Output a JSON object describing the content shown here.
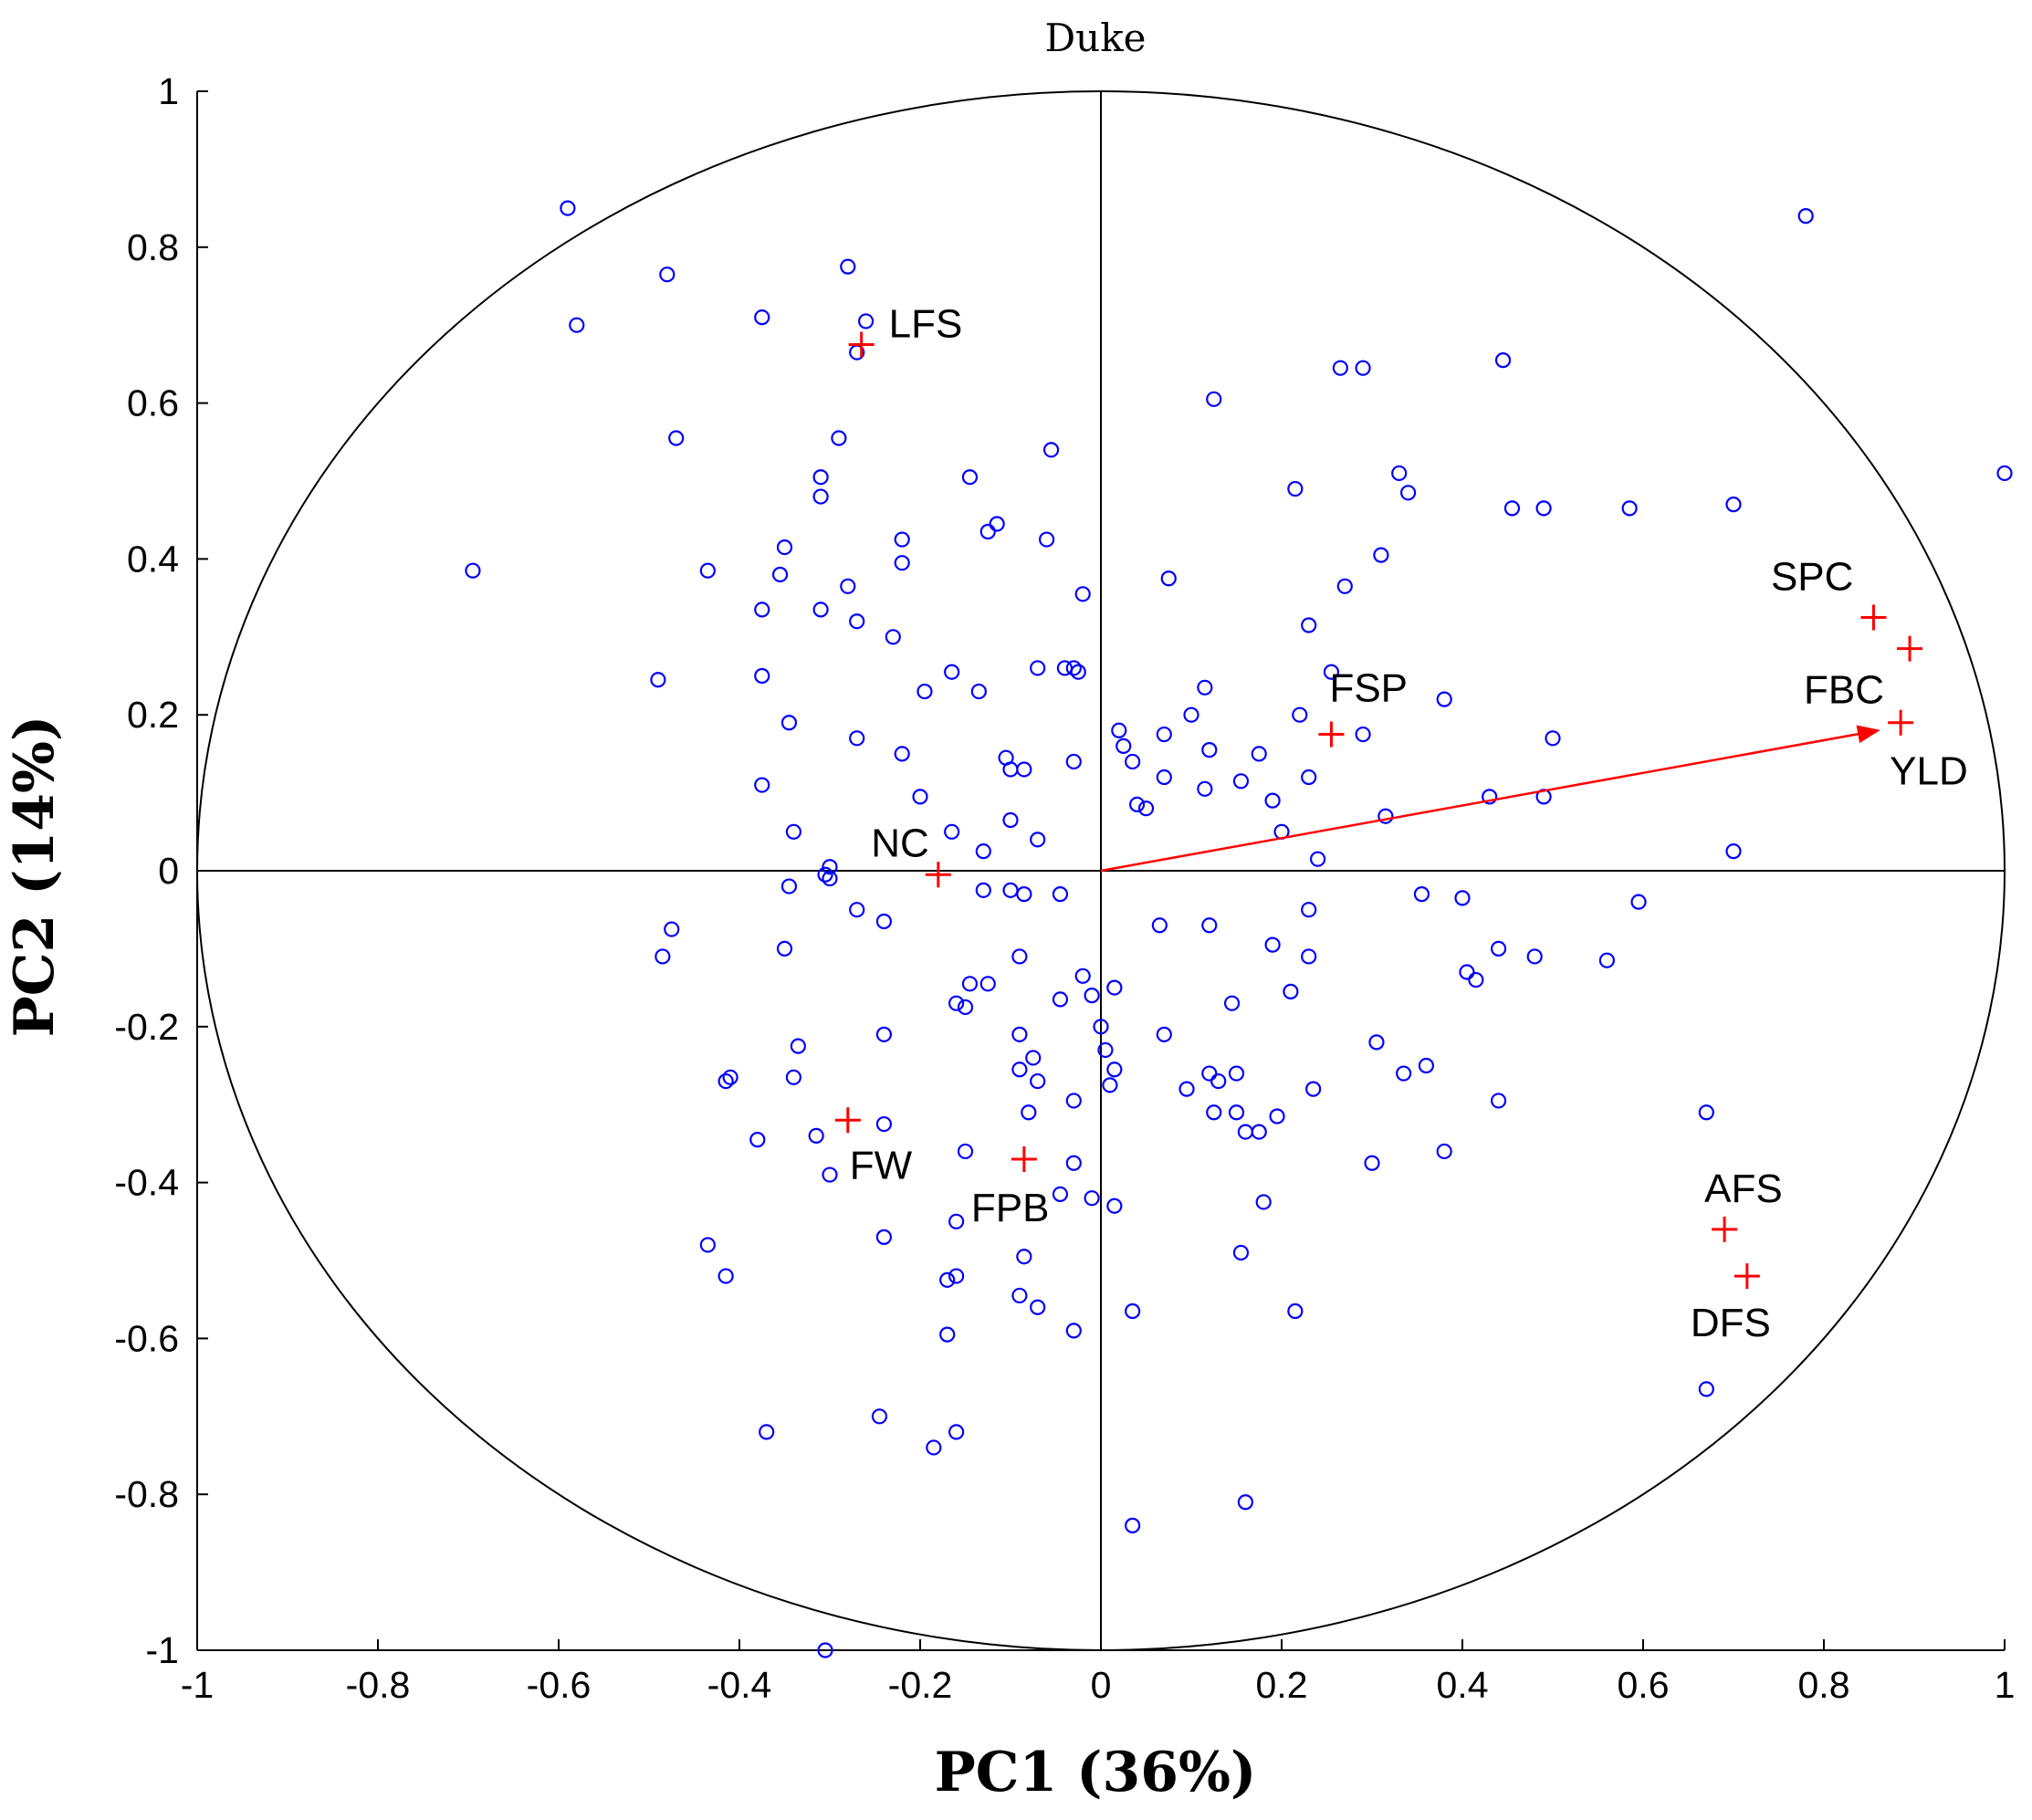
{
  "chart_data": {
    "type": "scatter",
    "title": "Duke",
    "xlabel": "PC1 (36%)",
    "ylabel": "PC2 (14%)",
    "xlim": [
      -1,
      1
    ],
    "ylim": [
      -1,
      1
    ],
    "xticks": [
      -1,
      -0.8,
      -0.6,
      -0.4,
      -0.2,
      0,
      0.2,
      0.4,
      0.6,
      0.8,
      1
    ],
    "yticks": [
      -1,
      -0.8,
      -0.6,
      -0.4,
      -0.2,
      0,
      0.2,
      0.4,
      0.6,
      0.8,
      1
    ],
    "xtick_labels": [
      "-1",
      "-0.8",
      "-0.6",
      "-0.4",
      "-0.2",
      "0",
      "0.2",
      "0.4",
      "0.6",
      "0.8",
      "1"
    ],
    "ytick_labels": [
      "-1",
      "-0.8",
      "-0.6",
      "-0.4",
      "-0.2",
      "0",
      "0.2",
      "0.4",
      "0.6",
      "0.8",
      "1"
    ],
    "unit_circle": true,
    "reference_lines": {
      "x": 0,
      "y": 0
    },
    "colors": {
      "observations": "#0000ff",
      "variables": "#ff0000",
      "arrow": "#ff0000",
      "axes": "#000000"
    },
    "variables": [
      {
        "name": "LFS",
        "x": -0.265,
        "y": 0.675
      },
      {
        "name": "SPC",
        "x": 0.855,
        "y": 0.325
      },
      {
        "name": "FBC",
        "x": 0.895,
        "y": 0.285
      },
      {
        "name": "YLD",
        "x": 0.885,
        "y": 0.19
      },
      {
        "name": "FSP",
        "x": 0.255,
        "y": 0.175
      },
      {
        "name": "NC",
        "x": -0.18,
        "y": -0.005
      },
      {
        "name": "FW",
        "x": -0.28,
        "y": -0.32
      },
      {
        "name": "FPB",
        "x": -0.085,
        "y": -0.37
      },
      {
        "name": "AFS",
        "x": 0.69,
        "y": -0.46
      },
      {
        "name": "DFS",
        "x": 0.715,
        "y": -0.52
      }
    ],
    "arrow": {
      "from": [
        0,
        0
      ],
      "to": [
        0.86,
        0.18
      ],
      "target": "YLD"
    },
    "observations": [
      [
        -0.59,
        0.85
      ],
      [
        -0.48,
        0.765
      ],
      [
        -0.58,
        0.7
      ],
      [
        -0.28,
        0.775
      ],
      [
        -0.375,
        0.71
      ],
      [
        -0.26,
        0.705
      ],
      [
        -0.27,
        0.665
      ],
      [
        0.125,
        0.605
      ],
      [
        0.265,
        0.645
      ],
      [
        0.29,
        0.645
      ],
      [
        0.445,
        0.655
      ],
      [
        0.78,
        0.84
      ],
      [
        1.0,
        0.51
      ],
      [
        -0.47,
        0.555
      ],
      [
        -0.31,
        0.505
      ],
      [
        -0.29,
        0.555
      ],
      [
        -0.31,
        0.48
      ],
      [
        -0.145,
        0.505
      ],
      [
        -0.055,
        0.54
      ],
      [
        0.215,
        0.49
      ],
      [
        0.33,
        0.51
      ],
      [
        0.34,
        0.485
      ],
      [
        0.455,
        0.465
      ],
      [
        0.49,
        0.465
      ],
      [
        0.585,
        0.465
      ],
      [
        0.7,
        0.47
      ],
      [
        -0.22,
        0.425
      ],
      [
        -0.22,
        0.395
      ],
      [
        -0.125,
        0.435
      ],
      [
        -0.115,
        0.445
      ],
      [
        -0.06,
        0.425
      ],
      [
        -0.35,
        0.415
      ],
      [
        -0.435,
        0.385
      ],
      [
        -0.695,
        0.385
      ],
      [
        -0.355,
        0.38
      ],
      [
        -0.375,
        0.335
      ],
      [
        -0.31,
        0.335
      ],
      [
        -0.28,
        0.365
      ],
      [
        -0.27,
        0.32
      ],
      [
        -0.23,
        0.3
      ],
      [
        -0.02,
        0.355
      ],
      [
        0.075,
        0.375
      ],
      [
        0.31,
        0.405
      ],
      [
        0.27,
        0.365
      ],
      [
        0.23,
        0.315
      ],
      [
        -0.49,
        0.245
      ],
      [
        -0.375,
        0.25
      ],
      [
        -0.165,
        0.255
      ],
      [
        -0.195,
        0.23
      ],
      [
        -0.135,
        0.23
      ],
      [
        -0.07,
        0.26
      ],
      [
        -0.04,
        0.26
      ],
      [
        -0.03,
        0.26
      ],
      [
        -0.025,
        0.255
      ],
      [
        0.115,
        0.235
      ],
      [
        0.1,
        0.2
      ],
      [
        0.255,
        0.255
      ],
      [
        0.38,
        0.22
      ],
      [
        0.22,
        0.2
      ],
      [
        0.29,
        0.175
      ],
      [
        -0.345,
        0.19
      ],
      [
        -0.27,
        0.17
      ],
      [
        -0.22,
        0.15
      ],
      [
        -0.105,
        0.145
      ],
      [
        -0.1,
        0.13
      ],
      [
        -0.085,
        0.13
      ],
      [
        -0.03,
        0.14
      ],
      [
        0.02,
        0.18
      ],
      [
        0.025,
        0.16
      ],
      [
        0.035,
        0.14
      ],
      [
        0.07,
        0.175
      ],
      [
        0.12,
        0.155
      ],
      [
        0.175,
        0.15
      ],
      [
        0.07,
        0.12
      ],
      [
        0.115,
        0.105
      ],
      [
        0.155,
        0.115
      ],
      [
        0.23,
        0.12
      ],
      [
        0.19,
        0.09
      ],
      [
        0.04,
        0.085
      ],
      [
        0.05,
        0.08
      ],
      [
        0.43,
        0.095
      ],
      [
        0.49,
        0.095
      ],
      [
        0.5,
        0.17
      ],
      [
        -0.375,
        0.11
      ],
      [
        -0.2,
        0.095
      ],
      [
        -0.34,
        0.05
      ],
      [
        -0.165,
        0.05
      ],
      [
        -0.1,
        0.065
      ],
      [
        -0.07,
        0.04
      ],
      [
        -0.13,
        0.025
      ],
      [
        0.2,
        0.05
      ],
      [
        0.315,
        0.07
      ],
      [
        0.24,
        0.015
      ],
      [
        0.7,
        0.025
      ],
      [
        -0.3,
        0.005
      ],
      [
        -0.305,
        -0.005
      ],
      [
        -0.345,
        -0.02
      ],
      [
        -0.3,
        -0.01
      ],
      [
        -0.27,
        -0.05
      ],
      [
        -0.24,
        -0.065
      ],
      [
        -0.13,
        -0.025
      ],
      [
        -0.1,
        -0.025
      ],
      [
        -0.085,
        -0.03
      ],
      [
        -0.045,
        -0.03
      ],
      [
        0.23,
        -0.05
      ],
      [
        0.355,
        -0.03
      ],
      [
        0.4,
        -0.035
      ],
      [
        0.595,
        -0.04
      ],
      [
        -0.475,
        -0.075
      ],
      [
        -0.485,
        -0.11
      ],
      [
        -0.35,
        -0.1
      ],
      [
        0.065,
        -0.07
      ],
      [
        0.12,
        -0.07
      ],
      [
        0.19,
        -0.095
      ],
      [
        0.23,
        -0.11
      ],
      [
        0.44,
        -0.1
      ],
      [
        0.48,
        -0.11
      ],
      [
        0.56,
        -0.115
      ],
      [
        0.405,
        -0.13
      ],
      [
        0.415,
        -0.14
      ],
      [
        -0.09,
        -0.11
      ],
      [
        -0.02,
        -0.135
      ],
      [
        -0.145,
        -0.145
      ],
      [
        -0.125,
        -0.145
      ],
      [
        -0.16,
        -0.17
      ],
      [
        -0.15,
        -0.175
      ],
      [
        -0.045,
        -0.165
      ],
      [
        -0.01,
        -0.16
      ],
      [
        0.015,
        -0.15
      ],
      [
        0.0,
        -0.2
      ],
      [
        0.145,
        -0.17
      ],
      [
        0.21,
        -0.155
      ],
      [
        -0.335,
        -0.225
      ],
      [
        -0.24,
        -0.21
      ],
      [
        -0.09,
        -0.21
      ],
      [
        0.07,
        -0.21
      ],
      [
        0.305,
        -0.22
      ],
      [
        0.335,
        -0.26
      ],
      [
        0.36,
        -0.25
      ],
      [
        0.44,
        -0.295
      ],
      [
        -0.41,
        -0.265
      ],
      [
        -0.415,
        -0.27
      ],
      [
        -0.34,
        -0.265
      ],
      [
        -0.09,
        -0.255
      ],
      [
        -0.075,
        -0.24
      ],
      [
        -0.07,
        -0.27
      ],
      [
        0.015,
        -0.255
      ],
      [
        0.01,
        -0.275
      ],
      [
        0.005,
        -0.23
      ],
      [
        0.12,
        -0.26
      ],
      [
        0.13,
        -0.27
      ],
      [
        0.15,
        -0.26
      ],
      [
        -0.03,
        -0.295
      ],
      [
        0.095,
        -0.28
      ],
      [
        0.235,
        -0.28
      ],
      [
        -0.08,
        -0.31
      ],
      [
        0.125,
        -0.31
      ],
      [
        0.15,
        -0.31
      ],
      [
        0.16,
        -0.335
      ],
      [
        0.175,
        -0.335
      ],
      [
        0.195,
        -0.315
      ],
      [
        0.67,
        -0.31
      ],
      [
        -0.24,
        -0.325
      ],
      [
        -0.38,
        -0.345
      ],
      [
        -0.315,
        -0.34
      ],
      [
        -0.15,
        -0.36
      ],
      [
        -0.03,
        -0.375
      ],
      [
        0.3,
        -0.375
      ],
      [
        0.38,
        -0.36
      ],
      [
        -0.3,
        -0.39
      ],
      [
        -0.045,
        -0.415
      ],
      [
        -0.01,
        -0.42
      ],
      [
        0.015,
        -0.43
      ],
      [
        0.18,
        -0.425
      ],
      [
        -0.16,
        -0.45
      ],
      [
        -0.24,
        -0.47
      ],
      [
        -0.435,
        -0.48
      ],
      [
        -0.415,
        -0.52
      ],
      [
        -0.085,
        -0.495
      ],
      [
        0.155,
        -0.49
      ],
      [
        -0.17,
        -0.525
      ],
      [
        -0.16,
        -0.52
      ],
      [
        -0.09,
        -0.545
      ],
      [
        -0.07,
        -0.56
      ],
      [
        -0.17,
        -0.595
      ],
      [
        -0.03,
        -0.59
      ],
      [
        0.035,
        -0.565
      ],
      [
        0.215,
        -0.565
      ],
      [
        -0.245,
        -0.7
      ],
      [
        -0.37,
        -0.72
      ],
      [
        -0.185,
        -0.74
      ],
      [
        -0.16,
        -0.72
      ],
      [
        0.67,
        -0.665
      ],
      [
        0.16,
        -0.81
      ],
      [
        0.035,
        -0.84
      ],
      [
        -0.305,
        -1.0
      ]
    ]
  }
}
